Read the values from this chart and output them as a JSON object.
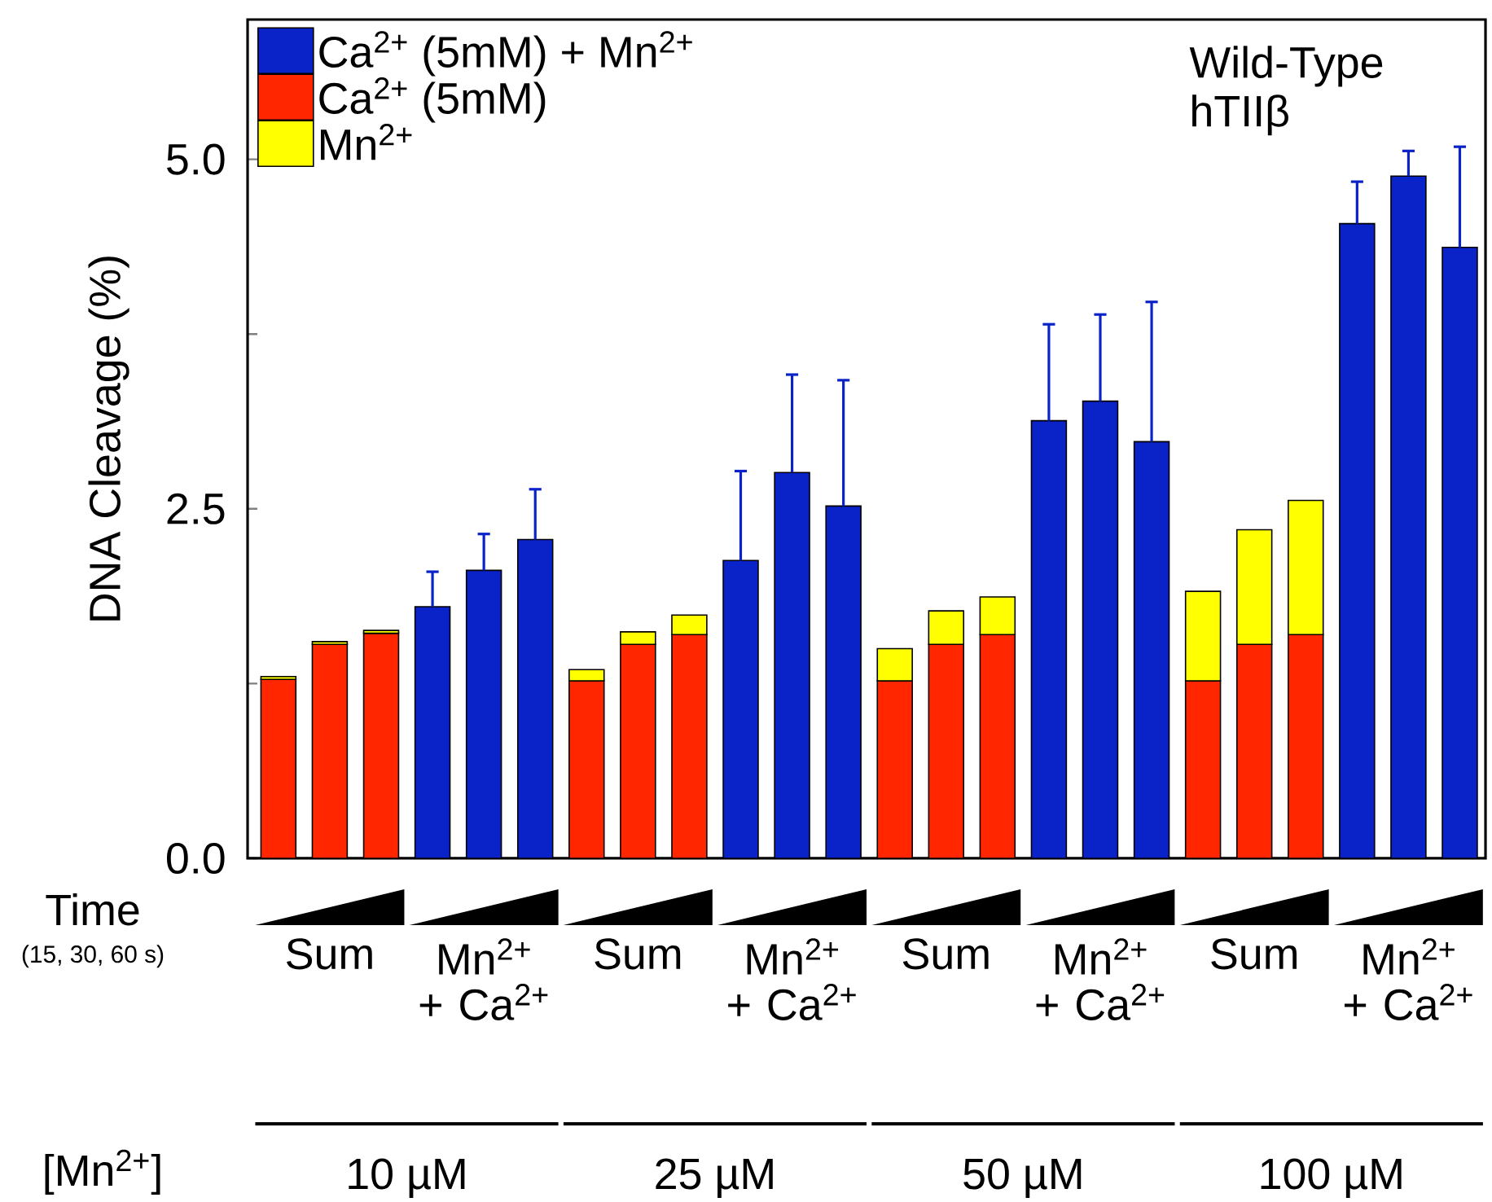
{
  "chart_data": {
    "type": "bar",
    "stacked": true,
    "ylabel": "DNA Cleavage (%)",
    "categories": [
      null,
      "Sum",
      null,
      null,
      "Mn$^{2+}$ + Ca$^{2+}$",
      null,
      null,
      "Sum",
      null,
      null,
      "Mn$^{2+}$ + Ca$^{2+}$",
      null,
      null,
      "Sum",
      null,
      null,
      "Mn$^{2+}$ + Ca$^{2+}$",
      null,
      null,
      "Sum",
      null,
      null,
      "Mn$^{2+}$ + Ca$^{2+}$",
      null
    ],
    "series": [
      {
        "name": "Ca$^{2+}$ (5mM) + Mn$^{2+}$",
        "color": "#0a23c8",
        "values": [
          null,
          null,
          null,
          1.8,
          2.06,
          2.28,
          null,
          null,
          null,
          2.13,
          2.76,
          2.52,
          null,
          null,
          null,
          3.13,
          3.27,
          2.98,
          null,
          null,
          null,
          4.54,
          4.88,
          4.37
        ],
        "errors": [
          null,
          null,
          null,
          0.25,
          0.26,
          0.36,
          null,
          null,
          null,
          0.64,
          0.7,
          0.9,
          null,
          null,
          null,
          0.69,
          0.62,
          1.0,
          null,
          null,
          null,
          0.3,
          0.18,
          0.72
        ]
      },
      {
        "name": "Ca$^{2+}$ (5mM)",
        "color": "#ff2600",
        "values": [
          1.28,
          1.53,
          1.61,
          null,
          null,
          null,
          1.27,
          1.53,
          1.6,
          null,
          null,
          null,
          1.27,
          1.53,
          1.6,
          null,
          null,
          null,
          1.27,
          1.53,
          1.6,
          null,
          null,
          null
        ]
      },
      {
        "name": "Mn$^{2+}$",
        "color": "#ffff00",
        "values": [
          0.02,
          0.02,
          0.02,
          null,
          null,
          null,
          0.08,
          0.09,
          0.14,
          null,
          null,
          null,
          0.23,
          0.24,
          0.27,
          null,
          null,
          null,
          0.64,
          0.82,
          0.96,
          null,
          null,
          null
        ]
      }
    ],
    "ylim": [
      0,
      6
    ],
    "yticks": [
      {
        "value": 0,
        "label": "0.0"
      },
      {
        "value": 1.25,
        "label": null
      },
      {
        "value": 2.5,
        "label": "2.5"
      },
      {
        "value": 3.75,
        "label": null
      },
      {
        "value": 5,
        "label": "5.0"
      }
    ],
    "legend": "top left",
    "annotations": [
      "Wild-Type hTIIβ",
      "Time",
      "(15, 30, 60 s)",
      "[Mn$^{2+}$]",
      "10 µM",
      "25 µM",
      "50 µM",
      "100 µM"
    ]
  }
}
